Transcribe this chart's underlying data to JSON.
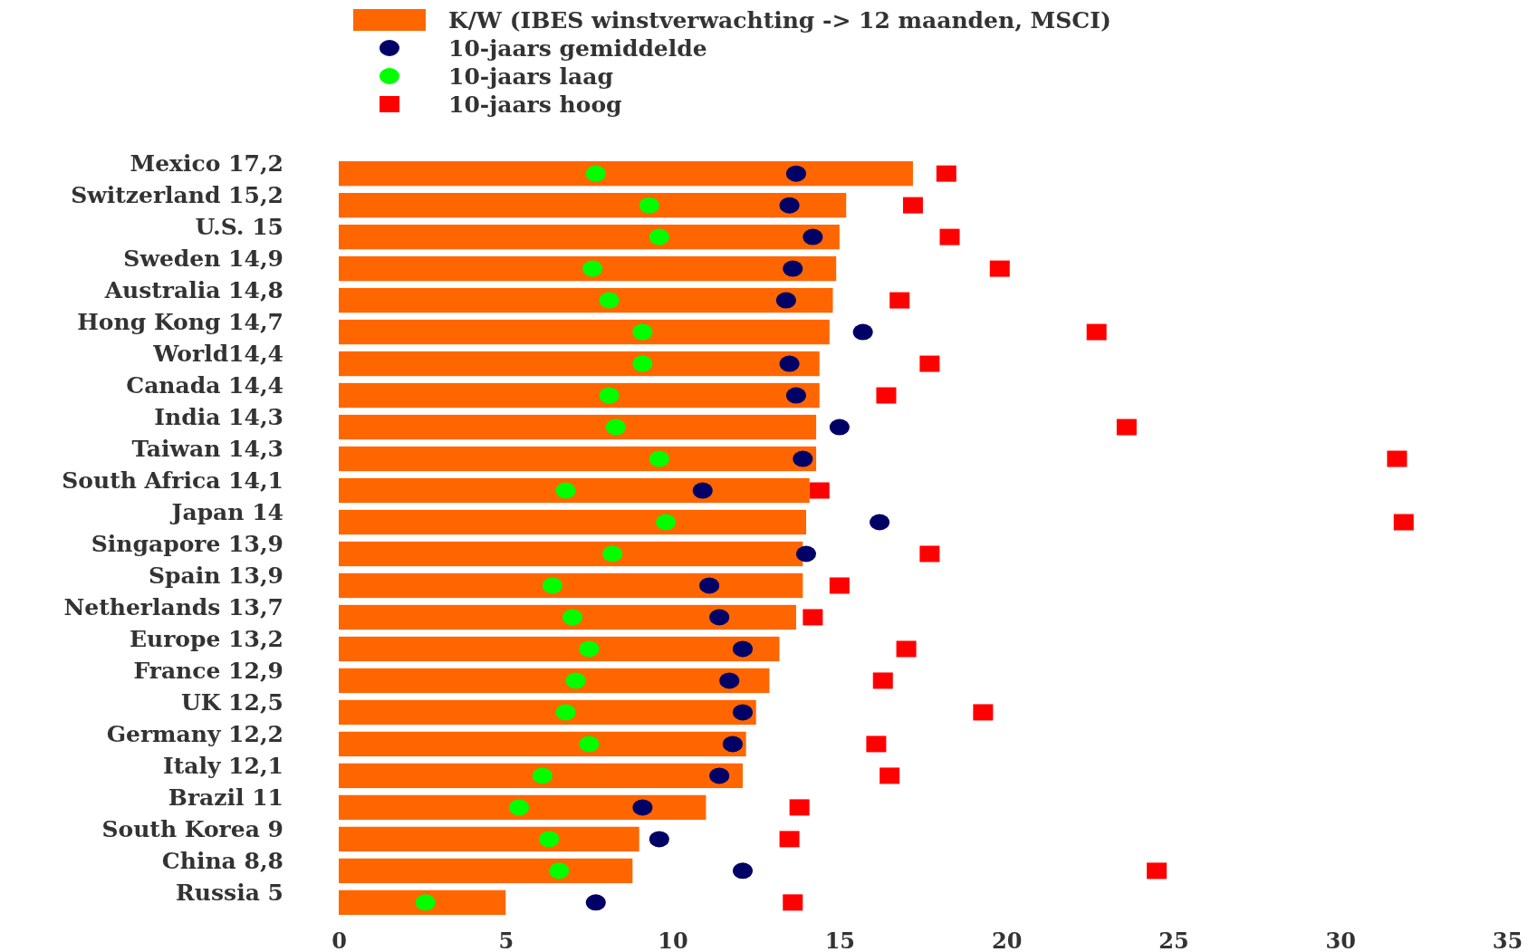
{
  "chart_data": {
    "type": "bar",
    "orientation": "horizontal",
    "legend": "top",
    "grid": false,
    "categories": [
      "Mexico 17,2",
      "Switzerland 15,2",
      "U.S. 15",
      "Sweden 14,9",
      "Australia 14,8",
      "Hong Kong 14,7",
      "World14,4",
      "Canada 14,4",
      "India 14,3",
      "Taiwan 14,3",
      "South Africa 14,1",
      "Japan 14",
      "Singapore 13,9",
      "Spain 13,9",
      "Netherlands 13,7",
      "Europe 13,2",
      "France 12,9",
      "UK 12,5",
      "Germany 12,2",
      "Italy 12,1",
      "Brazil 11",
      "South Korea 9",
      "China 8,8",
      "Russia 5"
    ],
    "xlim": [
      0,
      35
    ],
    "xticks": [
      0,
      5,
      10,
      15,
      20,
      25,
      30,
      35
    ],
    "series": [
      {
        "name": "K/W (IBES winstverwachting -> 12 maanden, MSCI)",
        "color": "#ff6600",
        "values": [
          17.2,
          15.2,
          15,
          14.9,
          14.8,
          14.7,
          14.4,
          14.4,
          14.3,
          14.3,
          14.1,
          14,
          13.9,
          13.9,
          13.7,
          13.2,
          12.9,
          12.5,
          12.2,
          12.1,
          11,
          9,
          8.8,
          5
        ]
      },
      {
        "name": "10-jaars gemiddelde",
        "type": "scatter",
        "marker": "circle",
        "color": "#000066",
        "values": [
          13.7,
          13.5,
          14.2,
          13.6,
          13.4,
          15.7,
          13.5,
          13.7,
          15.0,
          13.9,
          10.9,
          16.2,
          14.0,
          11.1,
          11.4,
          12.1,
          11.7,
          12.1,
          11.8,
          11.4,
          9.1,
          9.6,
          12.1,
          7.7
        ]
      },
      {
        "name": "10-jaars laag",
        "type": "scatter",
        "marker": "circle",
        "color": "#00ff00",
        "values": [
          7.7,
          9.3,
          9.6,
          7.6,
          8.1,
          9.1,
          9.1,
          8.1,
          8.3,
          9.6,
          6.8,
          9.8,
          8.2,
          6.4,
          7.0,
          7.5,
          7.1,
          6.8,
          7.5,
          6.1,
          5.4,
          6.3,
          6.6,
          2.6
        ]
      },
      {
        "name": "10-jaars hoog",
        "type": "scatter",
        "marker": "square",
        "color": "#ff0000",
        "values": [
          18.2,
          17.2,
          18.3,
          19.8,
          16.8,
          22.7,
          17.7,
          16.4,
          23.6,
          31.7,
          14.4,
          31.9,
          17.7,
          15.0,
          14.2,
          17.0,
          16.3,
          19.3,
          16.1,
          16.5,
          13.8,
          13.5,
          24.5,
          13.6
        ]
      }
    ]
  }
}
